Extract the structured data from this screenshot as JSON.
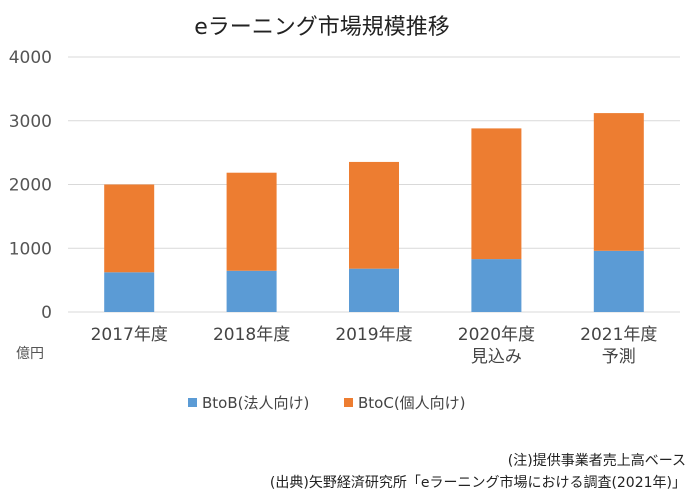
{
  "chart_data": {
    "type": "bar",
    "stacked": true,
    "title": "eラーニング市場規模推移",
    "unit_label": "億円",
    "ylim": [
      0,
      4000
    ],
    "yticks": [
      "0",
      "1000",
      "2000",
      "3000",
      "4000"
    ],
    "grid": true,
    "legend_position": "bottom",
    "categories": [
      [
        "2017年度"
      ],
      [
        "2018年度"
      ],
      [
        "2019年度"
      ],
      [
        "2020年度",
        "見込み"
      ],
      [
        "2021年度",
        "予測"
      ]
    ],
    "series": [
      {
        "name": "BtoB(法人向け)",
        "color": "#5b9bd5",
        "values": [
          623,
          647,
          680,
          830,
          960
        ]
      },
      {
        "name": "BtoC(個人向け)",
        "color": "#ed7d31",
        "values": [
          1377,
          1538,
          1674,
          2050,
          2160
        ]
      }
    ],
    "notes": [
      "(注)提供事業者売上高ベース",
      "(出典)矢野経済研究所「eラーニング市場における調査(2021年)」"
    ]
  }
}
